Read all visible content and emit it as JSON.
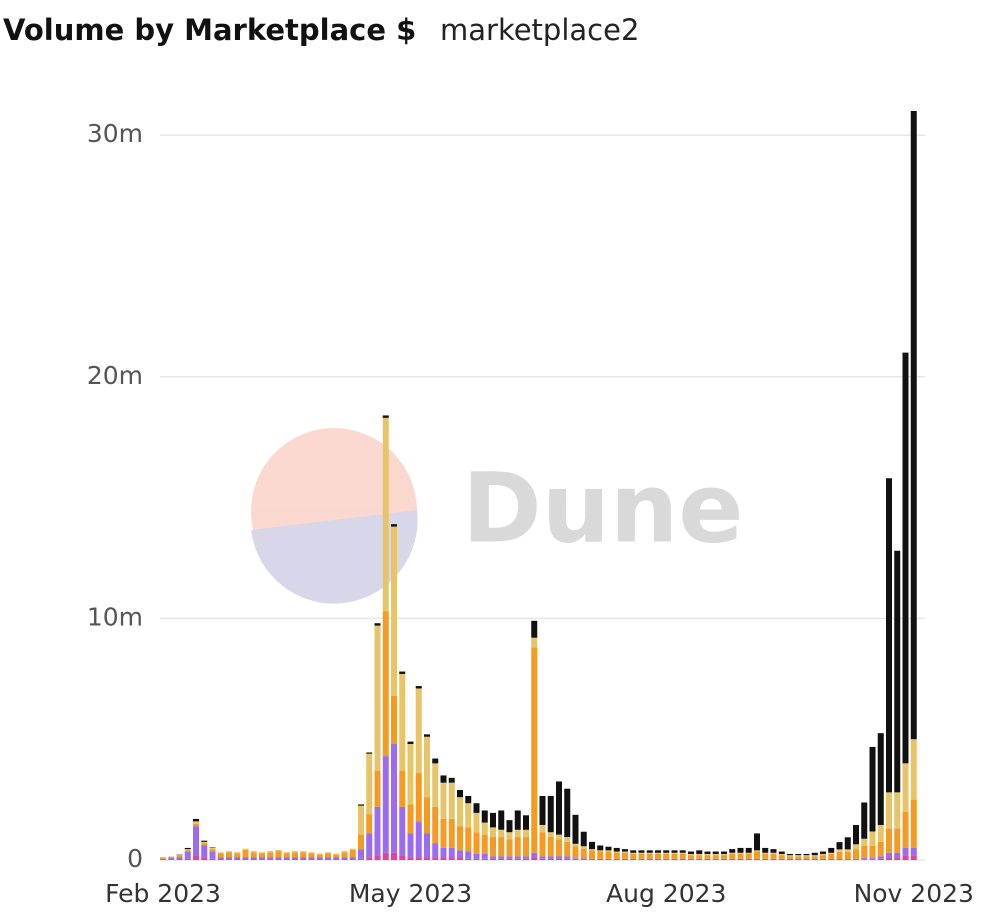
{
  "chart_data": {
    "type": "stacked_bar",
    "title": "Volume by Marketplace $",
    "subtitle": "marketplace2",
    "watermark": "Dune",
    "categories": [
      "Feb 2023",
      null,
      null,
      null,
      null,
      null,
      null,
      null,
      null,
      null,
      null,
      null,
      null,
      null,
      null,
      null,
      null,
      null,
      null,
      null,
      null,
      null,
      null,
      null,
      null,
      null,
      null,
      null,
      null,
      null,
      "May 2023",
      null,
      null,
      null,
      null,
      null,
      null,
      null,
      null,
      null,
      null,
      null,
      null,
      null,
      null,
      null,
      null,
      null,
      null,
      null,
      null,
      null,
      null,
      null,
      null,
      null,
      null,
      null,
      null,
      null,
      null,
      "Aug 2023",
      null,
      null,
      null,
      null,
      null,
      null,
      null,
      null,
      null,
      null,
      null,
      null,
      null,
      null,
      null,
      null,
      null,
      null,
      null,
      null,
      null,
      null,
      null,
      null,
      null,
      null,
      null,
      null,
      null,
      "Nov 2023"
    ],
    "series": [
      {
        "color": "#e8409a",
        "values": [
          0,
          0,
          0.02,
          0.05,
          0.2,
          0.1,
          0.05,
          0.02,
          0.02,
          0.02,
          0.02,
          0.02,
          0.02,
          0.02,
          0.02,
          0.02,
          0.02,
          0.02,
          0.02,
          0.02,
          0.02,
          0.02,
          0.02,
          0.02,
          0.05,
          0.1,
          0.2,
          0.3,
          0.3,
          0.2,
          0.1,
          0.1,
          0.1,
          0.1,
          0.1,
          0.1,
          0.1,
          0.05,
          0.05,
          0.05,
          0.05,
          0.05,
          0.05,
          0.05,
          0.05,
          0.1,
          0.05,
          0.05,
          0.05,
          0.05,
          0.02,
          0.02,
          0.02,
          0.02,
          0.02,
          0.02,
          0.02,
          0.02,
          0.02,
          0.02,
          0.02,
          0.02,
          0.02,
          0.02,
          0.02,
          0.02,
          0.02,
          0.02,
          0.02,
          0.02,
          0.02,
          0.02,
          0.02,
          0.02,
          0.02,
          0.02,
          0.02,
          0.02,
          0.02,
          0.02,
          0.02,
          0.02,
          0.02,
          0.02,
          0.02,
          0.03,
          0.03,
          0.05,
          0.1,
          0.1,
          0.2,
          0.2
        ]
      },
      {
        "color": "#9b6cf2",
        "values": [
          0.05,
          0.08,
          0.1,
          0.3,
          1.2,
          0.5,
          0.3,
          0.1,
          0.1,
          0.1,
          0.1,
          0.1,
          0.1,
          0.1,
          0.1,
          0.1,
          0.1,
          0.1,
          0.1,
          0.1,
          0.1,
          0.1,
          0.1,
          0.1,
          0.4,
          1,
          2,
          4,
          4.5,
          2,
          1,
          1.5,
          1,
          0.6,
          0.4,
          0.4,
          0.3,
          0.3,
          0.2,
          0.2,
          0.1,
          0.1,
          0.1,
          0.1,
          0.1,
          0.2,
          0.1,
          0.1,
          0.1,
          0.1,
          0.05,
          0.05,
          0.03,
          0.03,
          0.03,
          0.03,
          0.03,
          0.03,
          0.03,
          0.03,
          0.03,
          0.03,
          0.03,
          0.03,
          0.03,
          0.03,
          0.03,
          0.03,
          0.03,
          0.03,
          0.03,
          0.03,
          0.03,
          0.03,
          0.03,
          0.03,
          0.03,
          0.03,
          0.03,
          0.03,
          0.03,
          0.03,
          0.02,
          0.02,
          0.03,
          0.05,
          0.05,
          0.1,
          0.2,
          0.2,
          0.3,
          0.3
        ]
      },
      {
        "color": "#f59a23",
        "values": [
          0.05,
          0.05,
          0.05,
          0.05,
          0.1,
          0.1,
          0.1,
          0.15,
          0.2,
          0.15,
          0.3,
          0.2,
          0.15,
          0.2,
          0.25,
          0.15,
          0.2,
          0.2,
          0.15,
          0.1,
          0.15,
          0.1,
          0.2,
          0.3,
          0.6,
          0.8,
          1.5,
          6,
          2,
          1.5,
          1.2,
          2,
          1.5,
          1.5,
          1.2,
          1.2,
          1,
          1,
          0.9,
          0.8,
          0.8,
          0.8,
          0.7,
          0.8,
          0.8,
          8.5,
          1,
          0.8,
          0.7,
          0.6,
          0.5,
          0.4,
          0.35,
          0.3,
          0.3,
          0.25,
          0.25,
          0.2,
          0.2,
          0.2,
          0.2,
          0.2,
          0.2,
          0.2,
          0.15,
          0.15,
          0.15,
          0.15,
          0.15,
          0.2,
          0.2,
          0.2,
          0.3,
          0.2,
          0.2,
          0.15,
          0.1,
          0.1,
          0.1,
          0.1,
          0.15,
          0.2,
          0.3,
          0.3,
          0.4,
          0.5,
          0.5,
          0.6,
          1,
          1,
          1.5,
          2
        ]
      },
      {
        "color": "#e8c468",
        "values": [
          0.02,
          0.02,
          0.03,
          0.05,
          0.1,
          0.05,
          0.05,
          0.05,
          0.05,
          0.05,
          0.05,
          0.05,
          0.05,
          0.05,
          0.05,
          0.05,
          0.05,
          0.05,
          0.05,
          0.05,
          0.05,
          0.05,
          0.05,
          0.05,
          1.2,
          2.5,
          6,
          8,
          7,
          4,
          2.5,
          3.5,
          2.5,
          1.8,
          1.5,
          1.5,
          1.2,
          1,
          0.8,
          0.5,
          0.4,
          0.3,
          0.3,
          0.3,
          0.3,
          0.4,
          0.3,
          0.2,
          0.2,
          0.2,
          0.1,
          0.1,
          0.05,
          0.05,
          0.05,
          0.05,
          0.05,
          0.05,
          0.05,
          0.05,
          0.05,
          0.05,
          0.05,
          0.05,
          0.05,
          0.05,
          0.05,
          0.05,
          0.05,
          0.05,
          0.05,
          0.05,
          0.05,
          0.05,
          0.05,
          0.05,
          0.05,
          0.05,
          0.05,
          0.05,
          0.05,
          0.05,
          0.1,
          0.1,
          0.2,
          0.3,
          0.6,
          0.7,
          1.5,
          1.5,
          2,
          2.5
        ]
      },
      {
        "color": "#111111",
        "values": [
          0,
          0,
          0.02,
          0.05,
          0.1,
          0.05,
          0.02,
          0,
          0,
          0,
          0,
          0,
          0,
          0,
          0,
          0,
          0,
          0,
          0,
          0,
          0,
          0,
          0,
          0,
          0.05,
          0.05,
          0.1,
          0.1,
          0.1,
          0.1,
          0.1,
          0.1,
          0.1,
          0.2,
          0.3,
          0.2,
          0.3,
          0.3,
          0.4,
          0.5,
          0.6,
          0.8,
          0.5,
          0.8,
          0.6,
          0.7,
          1.2,
          1.5,
          2.2,
          2,
          1.2,
          0.6,
          0.3,
          0.2,
          0.15,
          0.15,
          0.1,
          0.1,
          0.1,
          0.1,
          0.1,
          0.1,
          0.1,
          0.1,
          0.1,
          0.15,
          0.1,
          0.1,
          0.1,
          0.15,
          0.2,
          0.2,
          0.7,
          0.2,
          0.15,
          0.1,
          0.05,
          0.05,
          0.05,
          0.1,
          0.1,
          0.2,
          0.3,
          0.5,
          0.8,
          1.5,
          3.5,
          3.8,
          13,
          10,
          17,
          26
        ]
      }
    ],
    "ylim": [
      0,
      31
    ],
    "yticks": [
      0,
      {
        "value": 10,
        "label": "10m"
      },
      {
        "value": 20,
        "label": "20m"
      },
      {
        "value": 30,
        "label": "30m"
      }
    ],
    "grid": true
  }
}
